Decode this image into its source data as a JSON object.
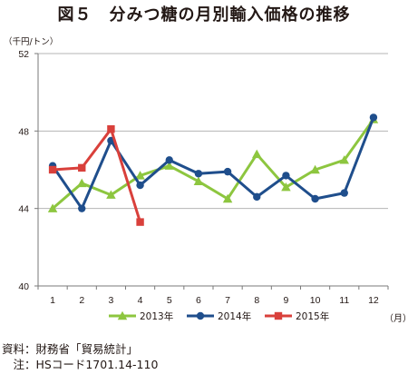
{
  "title": "図５　分みつ糖の月別輸入価格の推移",
  "y_unit": "（千円/トン）",
  "x_unit": "（月）",
  "source": {
    "line1": "資料：財務省「貿易統計」",
    "line2": "　注：HSコード1701.14-110"
  },
  "chart_data": {
    "type": "line",
    "title": "図５　分みつ糖の月別輸入価格の推移",
    "xlabel": "（月）",
    "ylabel": "（千円/トン）",
    "categories": [
      "1",
      "2",
      "3",
      "4",
      "5",
      "6",
      "7",
      "8",
      "9",
      "10",
      "11",
      "12"
    ],
    "ylim": [
      40,
      52
    ],
    "yticks": [
      "40",
      "44",
      "48",
      "52"
    ],
    "grid": "horizontal",
    "legend": "bottom",
    "series": [
      {
        "name": "2013年",
        "color": "#8dc63f",
        "marker": "triangle",
        "values": [
          44.0,
          45.3,
          44.7,
          45.7,
          46.2,
          45.4,
          44.5,
          46.8,
          45.1,
          46.0,
          46.5,
          48.6
        ]
      },
      {
        "name": "2014年",
        "color": "#1f4e8c",
        "marker": "circle",
        "values": [
          46.2,
          44.0,
          47.5,
          45.2,
          46.5,
          45.8,
          45.9,
          44.6,
          45.7,
          44.5,
          44.8,
          48.7
        ]
      },
      {
        "name": "2015年",
        "color": "#d9403b",
        "marker": "square",
        "values": [
          46.0,
          46.1,
          48.1,
          43.3,
          null,
          null,
          null,
          null,
          null,
          null,
          null,
          null
        ]
      }
    ]
  }
}
